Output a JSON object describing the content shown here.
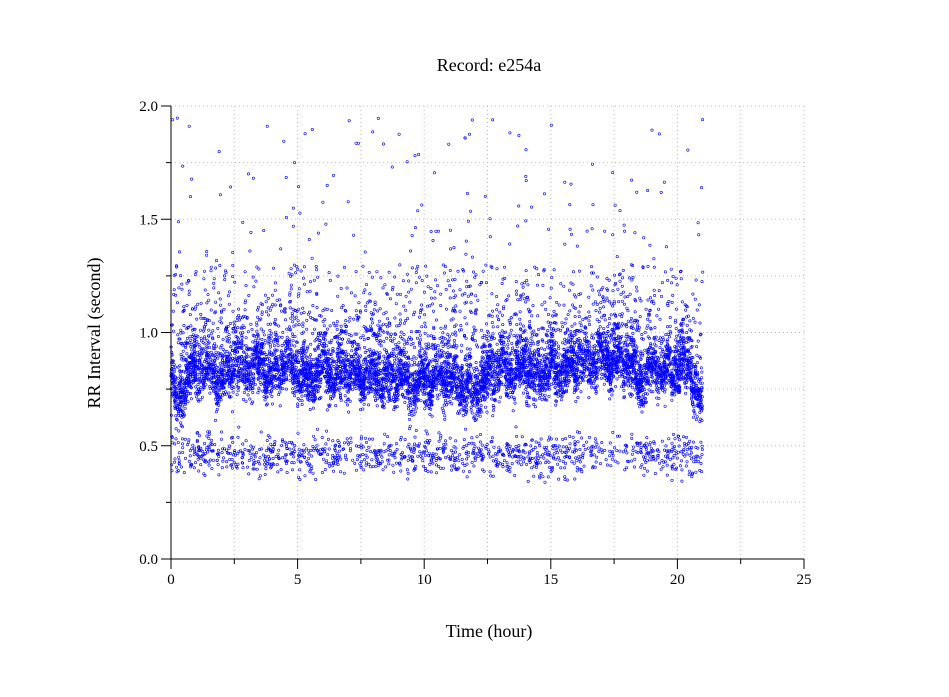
{
  "chart_data": {
    "type": "scatter",
    "title": "Record:  e254a",
    "xlabel": "Time (hour)",
    "ylabel": "RR Interval (second)",
    "xlim": [
      0,
      25
    ],
    "ylim": [
      0,
      2.0
    ],
    "x_ticks": [
      {
        "value": 0,
        "label": "0"
      },
      {
        "value": 5,
        "label": "5"
      },
      {
        "value": 10,
        "label": "10"
      },
      {
        "value": 15,
        "label": "15"
      },
      {
        "value": 20,
        "label": "20"
      },
      {
        "value": 25,
        "label": "25"
      }
    ],
    "y_ticks": [
      {
        "value": 0.0,
        "label": "0.0"
      },
      {
        "value": 0.5,
        "label": "0.5"
      },
      {
        "value": 1.0,
        "label": "1.0"
      },
      {
        "value": 1.5,
        "label": "1.5"
      },
      {
        "value": 2.0,
        "label": "2.0"
      }
    ],
    "grid": true,
    "marker_color": "#0000ff",
    "series": [
      {
        "data_range_x": [
          0,
          21
        ],
        "main_band_profile": [
          [
            0.0,
            0.8
          ],
          [
            0.3,
            0.68
          ],
          [
            0.6,
            0.8
          ],
          [
            1.0,
            0.84
          ],
          [
            1.5,
            0.82
          ],
          [
            2.0,
            0.78
          ],
          [
            2.5,
            0.86
          ],
          [
            3.0,
            0.83
          ],
          [
            3.5,
            0.86
          ],
          [
            4.0,
            0.8
          ],
          [
            4.5,
            0.88
          ],
          [
            5.0,
            0.82
          ],
          [
            5.5,
            0.78
          ],
          [
            6.0,
            0.86
          ],
          [
            6.5,
            0.8
          ],
          [
            7.0,
            0.84
          ],
          [
            7.5,
            0.8
          ],
          [
            8.0,
            0.82
          ],
          [
            8.5,
            0.78
          ],
          [
            9.0,
            0.82
          ],
          [
            9.5,
            0.76
          ],
          [
            10.0,
            0.8
          ],
          [
            10.5,
            0.78
          ],
          [
            11.0,
            0.8
          ],
          [
            11.5,
            0.76
          ],
          [
            12.0,
            0.74
          ],
          [
            12.5,
            0.8
          ],
          [
            13.0,
            0.84
          ],
          [
            13.5,
            0.82
          ],
          [
            14.0,
            0.86
          ],
          [
            14.5,
            0.8
          ],
          [
            15.0,
            0.84
          ],
          [
            15.5,
            0.82
          ],
          [
            16.0,
            0.88
          ],
          [
            16.5,
            0.86
          ],
          [
            17.0,
            0.9
          ],
          [
            17.5,
            0.86
          ],
          [
            18.0,
            0.88
          ],
          [
            18.5,
            0.78
          ],
          [
            19.0,
            0.84
          ],
          [
            19.5,
            0.82
          ],
          [
            20.0,
            0.86
          ],
          [
            20.5,
            0.84
          ],
          [
            21.0,
            0.66
          ]
        ],
        "lower_band_level": 0.46,
        "upper_outlier_range": [
          1.3,
          1.95
        ],
        "approx_point_count": 9000
      }
    ]
  }
}
